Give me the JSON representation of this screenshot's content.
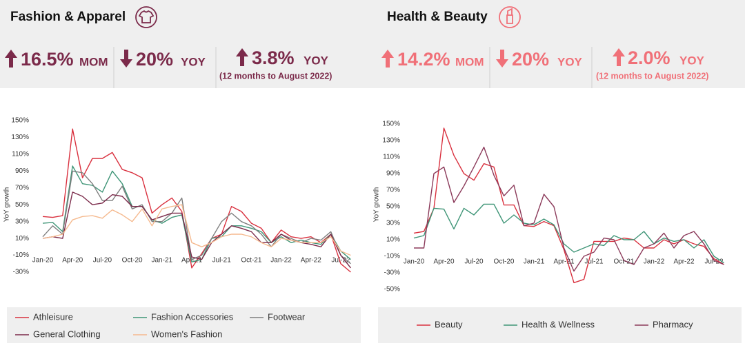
{
  "panels": [
    {
      "title": "Fashion & Apparel",
      "kpis": [
        {
          "value": "16.5%",
          "unit": "MOM"
        },
        {
          "value": "20%",
          "unit": "YOY"
        },
        {
          "value": "3.8%",
          "unit": "YOY",
          "note": "(12 months to August 2022)"
        }
      ]
    },
    {
      "title": "Health & Beauty",
      "kpis": [
        {
          "value": "14.2%",
          "unit": "MOM"
        },
        {
          "value": "20%",
          "unit": "YOY"
        },
        {
          "value": "2.0%",
          "unit": "YOY",
          "note": "(12 months to August 2022)"
        }
      ]
    }
  ],
  "chart_data": [
    {
      "type": "line",
      "y_label": "YoY growth",
      "categories": [
        "Jan-20",
        null,
        null,
        "Apr-20",
        null,
        null,
        "Jul-20",
        null,
        null,
        "Oct-20",
        null,
        null,
        "Jan-21",
        null,
        null,
        "Apr-21",
        null,
        null,
        "Jul-21",
        null,
        null,
        "Oct-21",
        null,
        null,
        "Jan-22",
        null,
        null,
        "Apr-22",
        null,
        null,
        "Jul-22",
        null
      ],
      "series": [
        {
          "name": "Athleisure",
          "color": "#d9303e",
          "values": [
            36,
            35,
            37,
            140,
            82,
            105,
            105,
            112,
            92,
            88,
            82,
            40,
            50,
            58,
            42,
            -25,
            -8,
            10,
            15,
            48,
            42,
            28,
            22,
            5,
            20,
            12,
            10,
            12,
            5,
            15,
            -20,
            -30
          ]
        },
        {
          "name": "Fashion Accessories",
          "color": "#3f9577",
          "values": [
            28,
            29,
            18,
            96,
            75,
            73,
            65,
            90,
            75,
            48,
            48,
            32,
            28,
            35,
            38,
            -18,
            -15,
            10,
            12,
            25,
            25,
            22,
            18,
            5,
            12,
            5,
            8,
            5,
            3,
            15,
            -5,
            -15
          ]
        },
        {
          "name": "Footwear",
          "color": "#7f7f7f",
          "values": [
            12,
            25,
            15,
            90,
            88,
            75,
            55,
            55,
            72,
            45,
            50,
            30,
            30,
            40,
            58,
            -15,
            -10,
            10,
            30,
            40,
            30,
            25,
            15,
            0,
            15,
            10,
            5,
            10,
            8,
            18,
            -10,
            -20
          ]
        },
        {
          "name": "General Clothing",
          "color": "#7b2a4a",
          "values": [
            10,
            12,
            10,
            65,
            60,
            50,
            52,
            62,
            60,
            48,
            48,
            32,
            36,
            40,
            40,
            -12,
            -15,
            5,
            15,
            25,
            22,
            18,
            5,
            5,
            15,
            8,
            5,
            3,
            0,
            15,
            -10,
            -25
          ]
        },
        {
          "name": "Women's Fashion",
          "color": "#f5b98e",
          "values": [
            10,
            12,
            15,
            32,
            36,
            37,
            34,
            44,
            38,
            30,
            45,
            25,
            45,
            48,
            50,
            5,
            0,
            5,
            12,
            15,
            15,
            12,
            5,
            0,
            10,
            8,
            5,
            5,
            5,
            12,
            -5,
            -10
          ]
        }
      ],
      "ylim": [
        -30,
        150
      ],
      "yticks": [
        {
          "value": -30,
          "label": "-30%"
        },
        {
          "value": -10,
          "label": "-10%"
        },
        {
          "value": 10,
          "label": "10%"
        },
        {
          "value": 30,
          "label": "30%"
        },
        {
          "value": 50,
          "label": "50%"
        },
        {
          "value": 70,
          "label": "70%"
        },
        {
          "value": 90,
          "label": "90%"
        },
        {
          "value": 110,
          "label": "110%"
        },
        {
          "value": 130,
          "label": "130%"
        },
        {
          "value": 150,
          "label": "150%"
        }
      ],
      "grid": false,
      "legend": "bottom"
    },
    {
      "type": "line",
      "y_label": "YoY growth",
      "categories": [
        "Jan-20",
        null,
        null,
        "Apr-20",
        null,
        null,
        "Jul-20",
        null,
        null,
        "Oct-20",
        null,
        null,
        "Jan-21",
        null,
        null,
        "Apr-21",
        null,
        null,
        "Jul-21",
        null,
        null,
        "Oct-21",
        null,
        null,
        "Jan-22",
        null,
        null,
        "Apr-22",
        null,
        null,
        "Jul-22",
        null
      ],
      "series": [
        {
          "name": "Beauty",
          "color": "#d9303e",
          "values": [
            18,
            20,
            48,
            145,
            112,
            90,
            82,
            102,
            98,
            52,
            52,
            27,
            26,
            32,
            27,
            -2,
            -42,
            -38,
            8,
            8,
            8,
            12,
            10,
            0,
            0,
            10,
            5,
            10,
            5,
            2,
            -13,
            -20
          ]
        },
        {
          "name": "Health & Wellness",
          "color": "#3f9577",
          "values": [
            12,
            15,
            48,
            47,
            23,
            48,
            40,
            53,
            53,
            30,
            40,
            30,
            28,
            35,
            28,
            5,
            -5,
            0,
            5,
            3,
            15,
            10,
            10,
            20,
            5,
            12,
            8,
            10,
            0,
            10,
            -10,
            -18
          ]
        },
        {
          "name": "Pharmacy",
          "color": "#8b3a5a",
          "values": [
            0,
            0,
            90,
            98,
            55,
            75,
            98,
            122,
            88,
            63,
            76,
            27,
            30,
            65,
            50,
            0,
            -28,
            -10,
            -5,
            12,
            10,
            -15,
            -20,
            0,
            5,
            18,
            0,
            15,
            20,
            5,
            -15,
            -20
          ]
        }
      ],
      "ylim": [
        -50,
        150
      ],
      "yticks": [
        {
          "value": -50,
          "label": "-50%"
        },
        {
          "value": -30,
          "label": "-30%"
        },
        {
          "value": -10,
          "label": "-10%"
        },
        {
          "value": 10,
          "label": "10%"
        },
        {
          "value": 30,
          "label": "30%"
        },
        {
          "value": 50,
          "label": "50%"
        },
        {
          "value": 70,
          "label": "70%"
        },
        {
          "value": 90,
          "label": "90%"
        },
        {
          "value": 110,
          "label": "110%"
        },
        {
          "value": 130,
          "label": "130%"
        },
        {
          "value": 150,
          "label": "150%"
        }
      ],
      "grid": false,
      "legend": "bottom"
    }
  ]
}
